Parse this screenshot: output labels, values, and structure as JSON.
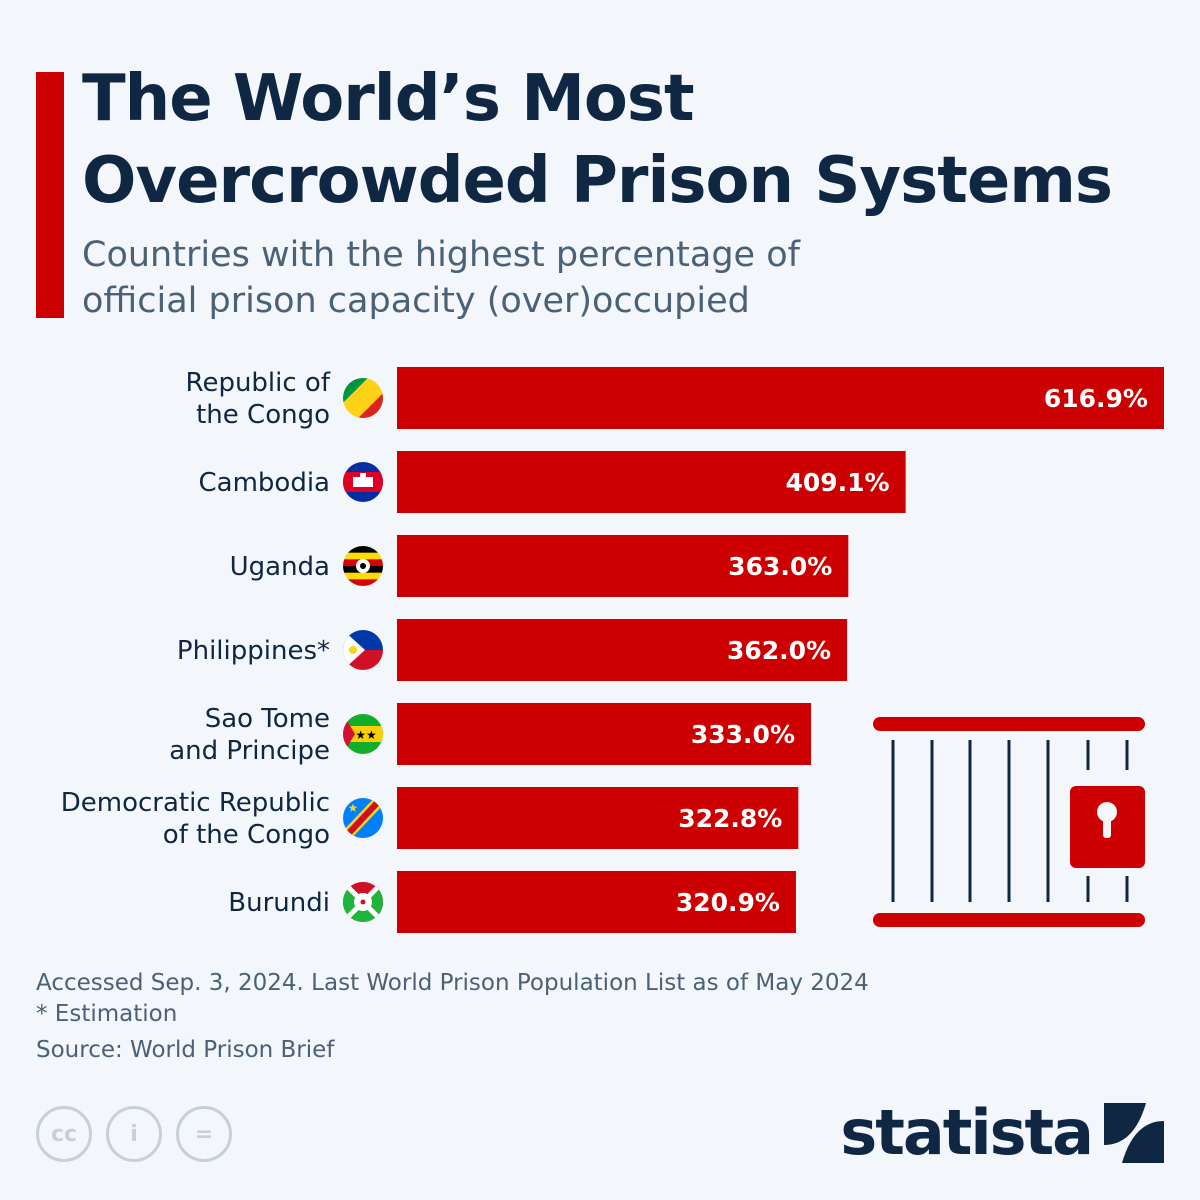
{
  "header": {
    "title": "The World’s Most Overcrowded Prison Systems",
    "subtitle": "Countries with the highest percentage of official prison capacity (over)occupied"
  },
  "colors": {
    "bar": "#cc0000",
    "text": "#0f2742",
    "muted": "#4a6178",
    "background": "#f3f6fa"
  },
  "chart_data": {
    "type": "bar",
    "orientation": "horizontal",
    "title": "The World’s Most Overcrowded Prison Systems",
    "subtitle": "Countries with the highest percentage of official prison capacity (over)occupied",
    "categories": [
      [
        "Republic of",
        "the Congo"
      ],
      [
        "Cambodia"
      ],
      [
        "Uganda"
      ],
      [
        "Philippines*"
      ],
      [
        "Sao Tome",
        "and Principe"
      ],
      [
        "Democratic Republic",
        "of the Congo"
      ],
      [
        "Burundi"
      ]
    ],
    "values": [
      616.9,
      409.1,
      363.0,
      362.0,
      333.0,
      322.8,
      320.9
    ],
    "value_labels": [
      "616.9%",
      "409.1%",
      "363.0%",
      "362.0%",
      "333.0%",
      "322.8%",
      "320.9%"
    ],
    "flags": [
      "congo-flag-icon",
      "cambodia-flag-icon",
      "uganda-flag-icon",
      "philippines-flag-icon",
      "sao-tome-flag-icon",
      "drc-flag-icon",
      "burundi-flag-icon"
    ],
    "xlim": [
      0,
      616.9
    ],
    "xlabel": "",
    "ylabel": "",
    "grid": false
  },
  "footer": {
    "note1": "Accessed Sep. 3, 2024. Last World Prison Population List as of May 2024",
    "note2": "* Estimation",
    "source": "Source: World Prison Brief",
    "license_icons": [
      "cc-icon",
      "attribution-icon",
      "no-derivatives-icon"
    ],
    "license_glyphs": [
      "cc",
      "i",
      "="
    ],
    "brand": "statista"
  }
}
